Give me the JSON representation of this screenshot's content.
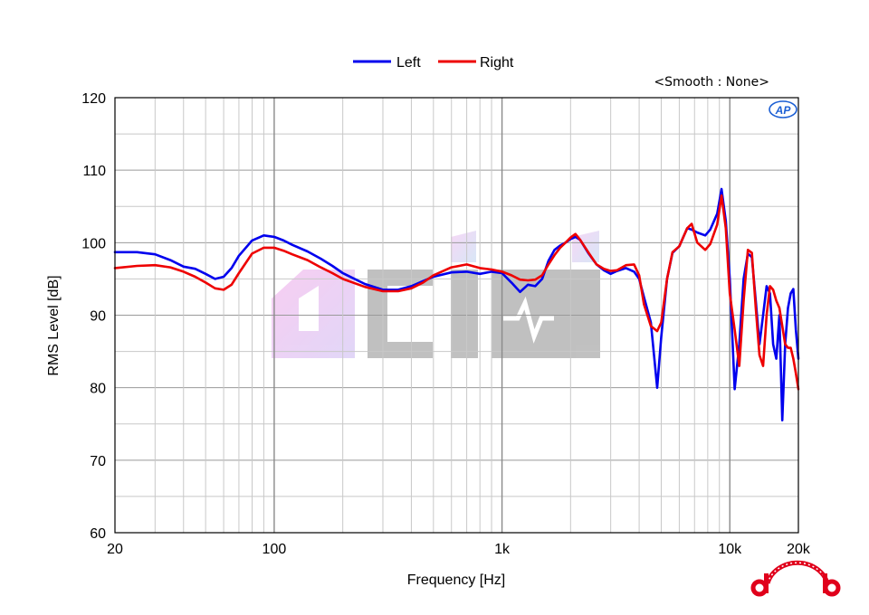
{
  "chart_data": {
    "type": "line",
    "xlabel": "Frequency [Hz]",
    "ylabel": "RMS Level [dB]",
    "smoothing_note": "<Smooth : None>",
    "x_scale": "log",
    "xlim": [
      20,
      20000
    ],
    "ylim": [
      60,
      120
    ],
    "x_ticks": [
      20,
      100,
      1000,
      10000,
      20000
    ],
    "x_tick_labels": [
      "20",
      "100",
      "1k",
      "10k",
      "20k"
    ],
    "y_ticks": [
      60,
      70,
      80,
      90,
      100,
      110,
      120
    ],
    "y_tick_labels": [
      "60",
      "70",
      "80",
      "90",
      "100",
      "110",
      "120"
    ],
    "grid": true,
    "legend_position": "top-center",
    "series": [
      {
        "name": "Left",
        "color": "#0000ee",
        "points": [
          [
            20,
            98.7
          ],
          [
            25,
            98.7
          ],
          [
            30,
            98.4
          ],
          [
            35,
            97.6
          ],
          [
            40,
            96.7
          ],
          [
            45,
            96.4
          ],
          [
            50,
            95.7
          ],
          [
            55,
            95.0
          ],
          [
            60,
            95.3
          ],
          [
            65,
            96.5
          ],
          [
            70,
            98.2
          ],
          [
            80,
            100.3
          ],
          [
            90,
            101.0
          ],
          [
            100,
            100.8
          ],
          [
            110,
            100.3
          ],
          [
            120,
            99.7
          ],
          [
            140,
            98.8
          ],
          [
            160,
            97.8
          ],
          [
            180,
            96.8
          ],
          [
            200,
            95.8
          ],
          [
            250,
            94.3
          ],
          [
            300,
            93.5
          ],
          [
            350,
            93.5
          ],
          [
            400,
            94.0
          ],
          [
            450,
            94.7
          ],
          [
            500,
            95.3
          ],
          [
            600,
            95.9
          ],
          [
            700,
            96.0
          ],
          [
            800,
            95.7
          ],
          [
            900,
            96.0
          ],
          [
            1000,
            95.8
          ],
          [
            1100,
            94.5
          ],
          [
            1200,
            93.2
          ],
          [
            1300,
            94.2
          ],
          [
            1400,
            94.0
          ],
          [
            1500,
            95.0
          ],
          [
            1600,
            97.5
          ],
          [
            1700,
            99.0
          ],
          [
            1800,
            99.6
          ],
          [
            1900,
            100.0
          ],
          [
            2000,
            100.5
          ],
          [
            2100,
            100.8
          ],
          [
            2200,
            100.4
          ],
          [
            2400,
            98.5
          ],
          [
            2600,
            97.0
          ],
          [
            2800,
            96.2
          ],
          [
            3000,
            95.7
          ],
          [
            3200,
            96.1
          ],
          [
            3500,
            96.5
          ],
          [
            3800,
            96.0
          ],
          [
            4000,
            95.0
          ],
          [
            4200,
            92.5
          ],
          [
            4500,
            89.0
          ],
          [
            4800,
            80.0
          ],
          [
            5000,
            87.0
          ],
          [
            5300,
            95.0
          ],
          [
            5600,
            98.6
          ],
          [
            6000,
            99.5
          ],
          [
            6500,
            102.0
          ],
          [
            6800,
            101.8
          ],
          [
            7200,
            101.4
          ],
          [
            7800,
            101.0
          ],
          [
            8200,
            101.8
          ],
          [
            8800,
            104.0
          ],
          [
            9200,
            107.4
          ],
          [
            9600,
            103.0
          ],
          [
            10000,
            95.0
          ],
          [
            10500,
            79.8
          ],
          [
            11000,
            86.0
          ],
          [
            11500,
            95.0
          ],
          [
            12000,
            98.5
          ],
          [
            12500,
            98.0
          ],
          [
            13000,
            92.0
          ],
          [
            13500,
            86.0
          ],
          [
            14000,
            90.0
          ],
          [
            14500,
            94.0
          ],
          [
            15000,
            93.0
          ],
          [
            15500,
            86.0
          ],
          [
            16000,
            84.0
          ],
          [
            16500,
            90.0
          ],
          [
            17000,
            75.5
          ],
          [
            17500,
            86.0
          ],
          [
            18000,
            91.0
          ],
          [
            18500,
            93.0
          ],
          [
            19000,
            93.6
          ],
          [
            19500,
            88.0
          ],
          [
            20000,
            84.0
          ]
        ]
      },
      {
        "name": "Right",
        "color": "#ee0000",
        "points": [
          [
            20,
            96.5
          ],
          [
            25,
            96.8
          ],
          [
            30,
            96.9
          ],
          [
            35,
            96.6
          ],
          [
            40,
            96.0
          ],
          [
            45,
            95.3
          ],
          [
            50,
            94.5
          ],
          [
            55,
            93.7
          ],
          [
            60,
            93.5
          ],
          [
            65,
            94.2
          ],
          [
            70,
            95.8
          ],
          [
            80,
            98.5
          ],
          [
            90,
            99.3
          ],
          [
            100,
            99.3
          ],
          [
            110,
            98.9
          ],
          [
            120,
            98.4
          ],
          [
            140,
            97.6
          ],
          [
            160,
            96.6
          ],
          [
            180,
            95.8
          ],
          [
            200,
            95.0
          ],
          [
            250,
            93.9
          ],
          [
            300,
            93.3
          ],
          [
            350,
            93.3
          ],
          [
            400,
            93.7
          ],
          [
            450,
            94.5
          ],
          [
            500,
            95.5
          ],
          [
            600,
            96.6
          ],
          [
            700,
            97.0
          ],
          [
            800,
            96.5
          ],
          [
            900,
            96.3
          ],
          [
            1000,
            96.0
          ],
          [
            1100,
            95.5
          ],
          [
            1200,
            94.9
          ],
          [
            1300,
            94.8
          ],
          [
            1400,
            94.9
          ],
          [
            1500,
            95.5
          ],
          [
            1600,
            97.0
          ],
          [
            1700,
            98.3
          ],
          [
            1800,
            99.3
          ],
          [
            1900,
            100.0
          ],
          [
            2000,
            100.7
          ],
          [
            2100,
            101.2
          ],
          [
            2200,
            100.4
          ],
          [
            2400,
            98.6
          ],
          [
            2600,
            97.0
          ],
          [
            2800,
            96.4
          ],
          [
            3000,
            96.1
          ],
          [
            3200,
            96.2
          ],
          [
            3500,
            96.9
          ],
          [
            3800,
            97.0
          ],
          [
            4000,
            95.5
          ],
          [
            4200,
            91.5
          ],
          [
            4500,
            88.5
          ],
          [
            4800,
            87.8
          ],
          [
            5000,
            89.0
          ],
          [
            5300,
            95.0
          ],
          [
            5600,
            98.7
          ],
          [
            6000,
            99.5
          ],
          [
            6500,
            102.0
          ],
          [
            6800,
            102.6
          ],
          [
            7200,
            100.0
          ],
          [
            7800,
            99.0
          ],
          [
            8200,
            99.8
          ],
          [
            8800,
            102.5
          ],
          [
            9200,
            106.5
          ],
          [
            9600,
            102.0
          ],
          [
            10000,
            93.0
          ],
          [
            10500,
            88.0
          ],
          [
            11000,
            83.0
          ],
          [
            11500,
            92.0
          ],
          [
            12000,
            99.0
          ],
          [
            12500,
            98.6
          ],
          [
            13000,
            91.0
          ],
          [
            13500,
            84.5
          ],
          [
            14000,
            83.0
          ],
          [
            14500,
            90.0
          ],
          [
            15000,
            94.0
          ],
          [
            15500,
            93.5
          ],
          [
            16000,
            92.0
          ],
          [
            16500,
            91.0
          ],
          [
            17000,
            88.5
          ],
          [
            17500,
            86.0
          ],
          [
            18000,
            85.5
          ],
          [
            18500,
            85.5
          ],
          [
            19000,
            84.0
          ],
          [
            19500,
            82.0
          ],
          [
            20000,
            79.8
          ]
        ]
      }
    ]
  },
  "icons": {
    "ap_logo": "ap-logo-icon",
    "watermark": "dcinside-watermark-icon",
    "corner_logo": "headphone-logo-icon"
  }
}
